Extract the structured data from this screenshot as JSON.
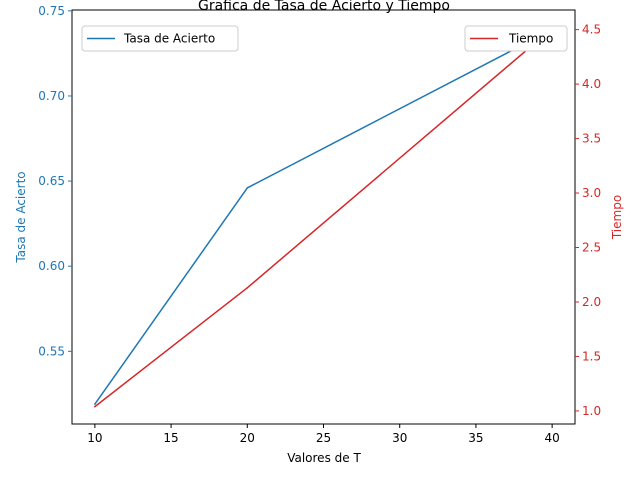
{
  "chart_data": {
    "type": "line",
    "title": "Grafica de Tasa de Acierto y Tiempo",
    "xlabel": "Valores de T",
    "x": [
      10,
      20,
      40
    ],
    "xlim": [
      8.5,
      41.5
    ],
    "xticks": [
      "10",
      "15",
      "20",
      "25",
      "30",
      "35",
      "40"
    ],
    "grid": false,
    "axes": {
      "left": {
        "label": "Tasa de Acierto",
        "color": "#1f77b4",
        "lim": [
          0.5073,
          0.7505
        ],
        "ticks": [
          "0.55",
          "0.60",
          "0.65",
          "0.70",
          "0.75"
        ]
      },
      "right": {
        "label": "Tiempo",
        "color": "#d62728",
        "lim": [
          0.88,
          4.68
        ],
        "ticks": [
          "1.0",
          "1.5",
          "2.0",
          "2.5",
          "3.0",
          "3.5",
          "4.0",
          "4.5"
        ]
      }
    },
    "series": [
      {
        "name": "Tasa de Acierto",
        "axis": "left",
        "color": "#1f77b4",
        "values": [
          0.519,
          0.646,
          0.739
        ],
        "legend": "upper left"
      },
      {
        "name": "Tiempo",
        "axis": "right",
        "color": "#d62728",
        "values": [
          1.04,
          2.13,
          4.51
        ],
        "legend": "upper right"
      }
    ]
  }
}
